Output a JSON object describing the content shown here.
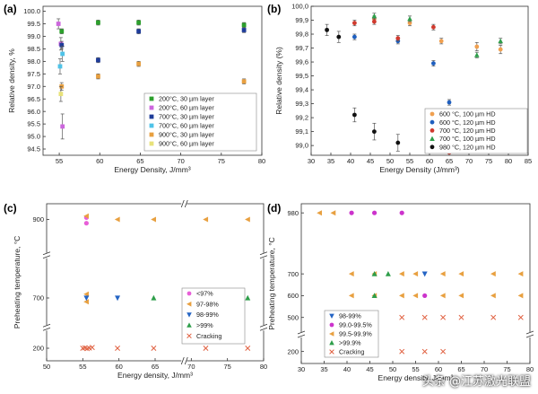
{
  "watermark": "头条 @江苏激光联盟",
  "chart_data": [
    {
      "id": "a",
      "panel_label": "(a)",
      "type": "scatter",
      "xlabel": "Energy Density, J/mm³",
      "ylabel": "Relative density, %",
      "xlim": [
        53,
        80
      ],
      "ylim": [
        94.25,
        100.2
      ],
      "xticks": [
        55,
        60,
        65,
        70,
        75,
        80
      ],
      "yticks": [
        94.5,
        95.0,
        95.5,
        96.0,
        96.5,
        97.0,
        97.5,
        98.0,
        98.5,
        99.0,
        99.5,
        100.0
      ],
      "ytick_decimals": 1,
      "legend_position": "bottom-right",
      "grid": false,
      "series": [
        {
          "name": "200°C, 30 µm layer",
          "color": "#2ca02c",
          "marker": "square",
          "points": [
            [
              55.3,
              99.2,
              0.1
            ],
            [
              59.8,
              99.55,
              0.1
            ],
            [
              64.8,
              99.55,
              0.1
            ],
            [
              77.8,
              99.45,
              0.1
            ]
          ]
        },
        {
          "name": "200°C, 60 µm layer",
          "color": "#cc66dd",
          "marker": "square",
          "points": [
            [
              54.9,
              99.5,
              0.2
            ],
            [
              55.2,
              98.7,
              0.25
            ],
            [
              55.4,
              95.4,
              0.5
            ]
          ]
        },
        {
          "name": "700°C, 30 µm layer",
          "color": "#1f3c99",
          "marker": "square",
          "points": [
            [
              55.3,
              98.65,
              0.15
            ],
            [
              59.8,
              98.05,
              0.1
            ],
            [
              64.8,
              99.2,
              0.1
            ],
            [
              77.8,
              99.25,
              0.1
            ]
          ]
        },
        {
          "name": "700°C, 60 µm layer",
          "color": "#4fc3e8",
          "marker": "square",
          "points": [
            [
              55.1,
              97.8,
              0.3
            ],
            [
              55.4,
              98.3,
              0.3
            ]
          ]
        },
        {
          "name": "900°C, 30 µm layer",
          "color": "#e8a040",
          "marker": "square",
          "points": [
            [
              55.3,
              97.0,
              0.15
            ],
            [
              59.8,
              97.4,
              0.1
            ],
            [
              64.8,
              97.9,
              0.1
            ],
            [
              77.8,
              97.2,
              0.1
            ]
          ]
        },
        {
          "name": "900°C, 60 µm layer",
          "color": "#e8e27a",
          "marker": "square",
          "points": [
            [
              55.2,
              96.7,
              0.3
            ]
          ]
        }
      ]
    },
    {
      "id": "b",
      "panel_label": "(b)",
      "type": "scatter",
      "xlabel": "Energy Density (J/mm³)",
      "ylabel": "Relative density (%)",
      "xlim": [
        30,
        85
      ],
      "ylim": [
        98.93,
        100.0
      ],
      "xticks": [
        30,
        35,
        40,
        45,
        50,
        55,
        60,
        65,
        70,
        75,
        80,
        85
      ],
      "yticks": [
        99.0,
        99.1,
        99.2,
        99.3,
        99.4,
        99.5,
        99.6,
        99.7,
        99.8,
        99.9,
        100.0
      ],
      "ytick_decimals": 1,
      "ytick_decimal_sep": ",",
      "legend_position": "bottom-right",
      "grid": false,
      "series": [
        {
          "name": "600 °C, 100 µm HD",
          "color": "#f0a050",
          "marker": "circle",
          "points": [
            [
              46,
              99.91,
              0.02
            ],
            [
              55,
              99.88,
              0.02
            ],
            [
              63,
              99.75,
              0.02
            ],
            [
              72,
              99.71,
              0.03
            ],
            [
              78,
              99.69,
              0.03
            ]
          ]
        },
        {
          "name": "600 °C, 120 µm HD",
          "color": "#1f5fbf",
          "marker": "circle",
          "points": [
            [
              41,
              99.78,
              0.02
            ],
            [
              52,
              99.75,
              0.02
            ],
            [
              61,
              99.59,
              0.02
            ],
            [
              65,
              99.31,
              0.02
            ]
          ]
        },
        {
          "name": "700 °C, 120 µm HD",
          "color": "#d03a2e",
          "marker": "circle",
          "points": [
            [
              41,
              99.88,
              0.02
            ],
            [
              46,
              99.89,
              0.02
            ],
            [
              52,
              99.77,
              0.02
            ],
            [
              61,
              99.85,
              0.02
            ],
            [
              65,
              98.95,
              0.02
            ]
          ]
        },
        {
          "name": "700 °C, 100 µm HD",
          "color": "#2e9e4a",
          "marker": "triangle",
          "points": [
            [
              46,
              99.93,
              0.02
            ],
            [
              55,
              99.91,
              0.02
            ],
            [
              63,
              99.0,
              0.02
            ],
            [
              72,
              99.65,
              0.02
            ],
            [
              78,
              99.75,
              0.02
            ]
          ]
        },
        {
          "name": "980 °C, 120 µm HD",
          "color": "#111111",
          "marker": "circle",
          "points": [
            [
              34,
              99.83,
              0.04
            ],
            [
              37,
              99.78,
              0.04
            ],
            [
              41,
              99.22,
              0.05
            ],
            [
              46,
              99.1,
              0.06
            ],
            [
              52,
              99.02,
              0.06
            ]
          ]
        }
      ]
    },
    {
      "id": "c",
      "panel_label": "(c)",
      "type": "scatter",
      "xlabel": "Energy density, J/mm³",
      "ylabel": "Preheating temperature, °C",
      "xlim": [
        50,
        80
      ],
      "xticks": [
        50,
        55,
        60,
        65,
        70,
        75,
        80
      ],
      "x_break": 69,
      "y_segments": [
        [
          150,
          250,
          0.86
        ],
        [
          640,
          760,
          0.54
        ],
        [
          850,
          950,
          0.1
        ]
      ],
      "yticks": [
        200,
        700,
        900
      ],
      "legend_position": "right",
      "grid": false,
      "series": [
        {
          "name": "<97%",
          "color": "#e85fd8",
          "marker": "circle",
          "points": [
            [
              55.5,
              910
            ],
            [
              55.5,
              880
            ]
          ]
        },
        {
          "name": "97-98%",
          "color": "#e8a040",
          "marker": "triangle-left",
          "points": [
            [
              55.5,
              918
            ],
            [
              59.8,
              900
            ],
            [
              64.8,
              900
            ],
            [
              72,
              900
            ],
            [
              77.8,
              900
            ],
            [
              55.5,
              712
            ],
            [
              55.5,
              688
            ]
          ]
        },
        {
          "name": "98-99%",
          "color": "#2464c4",
          "marker": "triangle-down",
          "points": [
            [
              55.5,
              700
            ],
            [
              59.8,
              700
            ]
          ]
        },
        {
          "name": ">99%",
          "color": "#2e9e4a",
          "marker": "triangle",
          "points": [
            [
              64.8,
              700
            ],
            [
              77.8,
              700
            ]
          ]
        },
        {
          "name": "Cracking",
          "color": "#e06040",
          "marker": "x",
          "points": [
            [
              55.0,
              200
            ],
            [
              55.3,
              202
            ],
            [
              55.6,
              198
            ],
            [
              55.9,
              201
            ],
            [
              56.3,
              204
            ],
            [
              59.8,
              200
            ],
            [
              64.8,
              200
            ],
            [
              72,
              200
            ],
            [
              77.8,
              200
            ]
          ]
        }
      ]
    },
    {
      "id": "d",
      "panel_label": "(d)",
      "type": "scatter",
      "xlabel": "Energy density, J/mm³",
      "ylabel": "Preheating temperature, °C",
      "xlim": [
        30,
        80
      ],
      "xticks": [
        30,
        35,
        40,
        45,
        50,
        55,
        60,
        65,
        70,
        75,
        80
      ],
      "y_segments": [
        [
          150,
          250,
          0.92
        ],
        [
          450,
          1000,
          0.02
        ]
      ],
      "yticks": [
        200,
        500,
        600,
        700,
        980
      ],
      "legend_position": "bottom-left",
      "grid": false,
      "series": [
        {
          "name": "98-99%",
          "color": "#2464c4",
          "marker": "triangle-down",
          "points": [
            [
              57,
              700
            ]
          ]
        },
        {
          "name": "99.0-99.5%",
          "color": "#cc33cc",
          "marker": "circle",
          "points": [
            [
              41,
              980
            ],
            [
              46,
              980
            ],
            [
              52,
              980
            ],
            [
              57,
              600
            ]
          ]
        },
        {
          "name": "99.5-99.9%",
          "color": "#e8a040",
          "marker": "triangle-left",
          "points": [
            [
              34,
              980
            ],
            [
              37,
              980
            ],
            [
              41,
              700
            ],
            [
              46,
              700
            ],
            [
              52,
              700
            ],
            [
              55,
              700
            ],
            [
              61,
              700
            ],
            [
              65,
              700
            ],
            [
              72,
              700
            ],
            [
              78,
              700
            ],
            [
              41,
              600
            ],
            [
              46,
              600
            ],
            [
              52,
              600
            ],
            [
              55,
              600
            ],
            [
              61,
              600
            ],
            [
              65,
              600
            ],
            [
              72,
              600
            ],
            [
              78,
              600
            ]
          ]
        },
        {
          "name": ">99.9%",
          "color": "#2e9e4a",
          "marker": "triangle",
          "points": [
            [
              46,
              700
            ],
            [
              49,
              700
            ],
            [
              46,
              600
            ]
          ]
        },
        {
          "name": "Cracking",
          "color": "#e06040",
          "marker": "x",
          "points": [
            [
              41,
              500
            ],
            [
              46,
              500
            ],
            [
              52,
              500
            ],
            [
              57,
              500
            ],
            [
              61,
              500
            ],
            [
              65,
              500
            ],
            [
              72,
              500
            ],
            [
              78,
              500
            ],
            [
              41,
              200
            ],
            [
              46,
              200
            ],
            [
              52,
              200
            ],
            [
              57,
              200
            ],
            [
              61,
              200
            ]
          ]
        }
      ]
    }
  ]
}
